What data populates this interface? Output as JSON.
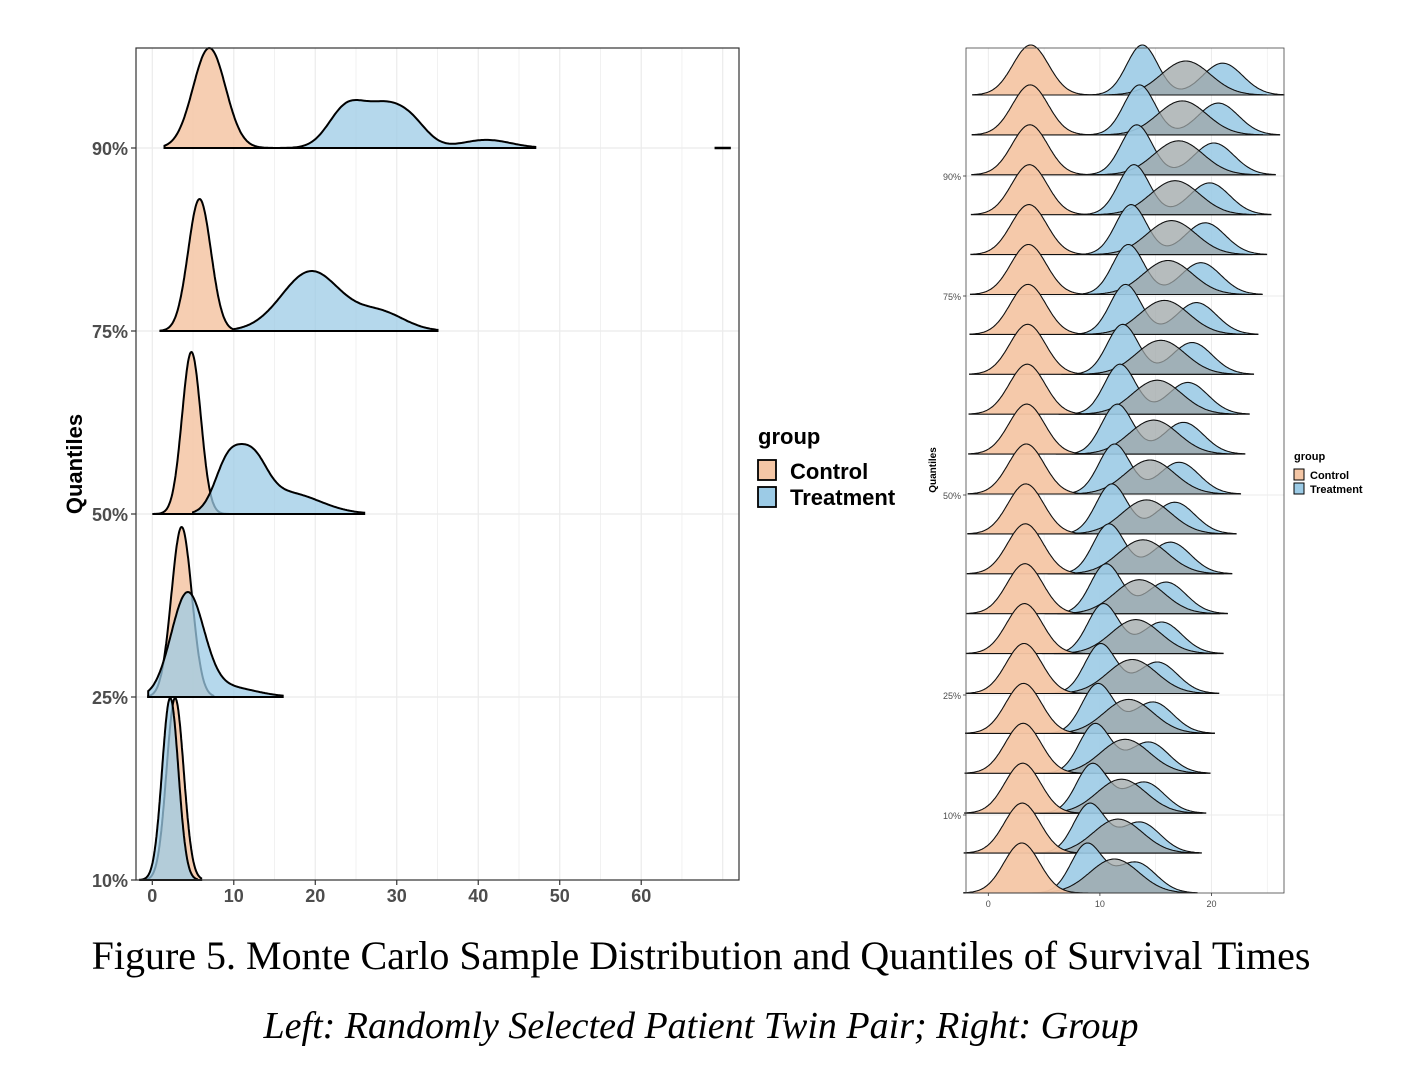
{
  "caption": {
    "title": "Figure 5. Monte Carlo Sample Distribution and Quantiles of Survival Times",
    "subtitle": "Left: Randomly Selected Patient Twin Pair; Right: Group"
  },
  "colors": {
    "control": "#f4c6a5",
    "treatment": "#9ccbe6",
    "overlap": "#9ea6a7",
    "grid": "#ebebeb"
  },
  "chart_data": [
    {
      "type": "area",
      "subtype": "ridgeline-density",
      "title": "Randomly Selected Patient Twin Pair",
      "xlabel": "",
      "ylabel": "Quantiles",
      "xlim": [
        -2,
        72
      ],
      "x_ticks": [
        0,
        10,
        20,
        30,
        40,
        50,
        60
      ],
      "y_tick_labels": [
        "10%",
        "25%",
        "50%",
        "75%",
        "90%"
      ],
      "legend": {
        "title": "group",
        "entries": [
          "Control",
          "Treatment"
        ],
        "position": "right"
      },
      "series": [
        {
          "quantile": "10%",
          "group": "Control",
          "components": [
            {
              "mu": 2.8,
              "sd": 1.05,
              "w": 1
            }
          ],
          "range": [
            -1,
            6
          ]
        },
        {
          "quantile": "10%",
          "group": "Treatment",
          "components": [
            {
              "mu": 2.2,
              "sd": 1.0,
              "w": 1
            }
          ],
          "range": [
            -1.5,
            5.5
          ]
        },
        {
          "quantile": "25%",
          "group": "Control",
          "components": [
            {
              "mu": 3.6,
              "sd": 1.25,
              "w": 1
            }
          ],
          "range": [
            -0.5,
            7.5
          ]
        },
        {
          "quantile": "25%",
          "group": "Treatment",
          "components": [
            {
              "mu": 4.3,
              "sd": 2.0,
              "w": 0.85
            },
            {
              "mu": 9,
              "sd": 3.5,
              "w": 0.15
            }
          ],
          "range": [
            -0.5,
            16
          ]
        },
        {
          "quantile": "50%",
          "group": "Control",
          "components": [
            {
              "mu": 4.8,
              "sd": 1.15,
              "w": 1
            }
          ],
          "range": [
            0,
            13
          ]
        },
        {
          "quantile": "50%",
          "group": "Treatment",
          "components": [
            {
              "mu": 9.2,
              "sd": 1.6,
              "w": 0.3
            },
            {
              "mu": 12.2,
              "sd": 1.8,
              "w": 0.35
            },
            {
              "mu": 16.5,
              "sd": 4.0,
              "w": 0.35
            }
          ],
          "range": [
            5,
            26
          ]
        },
        {
          "quantile": "75%",
          "group": "Control",
          "components": [
            {
              "mu": 5.8,
              "sd": 1.4,
              "w": 1
            }
          ],
          "range": [
            1,
            14
          ]
        },
        {
          "quantile": "75%",
          "group": "Treatment",
          "components": [
            {
              "mu": 19.5,
              "sd": 3.6,
              "w": 0.8
            },
            {
              "mu": 28,
              "sd": 3.0,
              "w": 0.2
            }
          ],
          "range": [
            10,
            35
          ]
        },
        {
          "quantile": "90%",
          "group": "Control",
          "components": [
            {
              "mu": 7.0,
              "sd": 2.0,
              "w": 1
            }
          ],
          "range": [
            1.5,
            15
          ]
        },
        {
          "quantile": "90%",
          "group": "Treatment",
          "components": [
            {
              "mu": 23.8,
              "sd": 2.2,
              "w": 0.35
            },
            {
              "mu": 28.5,
              "sd": 2.5,
              "w": 0.4
            },
            {
              "mu": 32,
              "sd": 2.0,
              "w": 0.15
            },
            {
              "mu": 41,
              "sd": 3.0,
              "w": 0.1
            }
          ],
          "range": [
            15,
            47
          ]
        }
      ],
      "outlier_segment": {
        "quantile": "90%",
        "x": [
          69,
          71
        ]
      }
    },
    {
      "type": "area",
      "subtype": "ridgeline-density",
      "title": "Group",
      "xlabel": "",
      "ylabel": "Quantiles",
      "xlim": [
        -2,
        26.5
      ],
      "x_ticks": [
        0,
        10,
        20
      ],
      "y_tick_labels": [
        "10%",
        "25%",
        "50%",
        "75%",
        "90%"
      ],
      "legend": {
        "title": "group",
        "entries": [
          "Control",
          "Treatment"
        ],
        "position": "right"
      },
      "ridges": 21,
      "control": {
        "mu_start": 3.0,
        "mu_end": 3.8,
        "sd": 1.6
      },
      "treatment": {
        "mu1_start": 8.8,
        "mu1_end": 13.8,
        "mu2_start": 13.2,
        "mu2_end": 21.0,
        "sd1": 1.4,
        "sd2": 1.8
      }
    }
  ]
}
